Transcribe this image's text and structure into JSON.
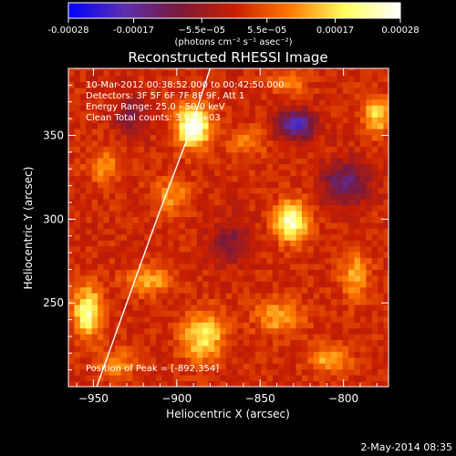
{
  "colorbar": {
    "tick_labels": [
      "-0.00028",
      "-0.00017",
      "−5.5e−05",
      "5.5e−05",
      "0.00017",
      "0.00028"
    ],
    "ticks": [
      -0.00028,
      -0.00017,
      -5.5e-05,
      5.5e-05,
      0.00017,
      0.00028
    ],
    "range": [
      -0.00028,
      0.00028
    ],
    "unit_label": "(photons cm⁻² s⁻¹ asec⁻²)",
    "colors": [
      "#0000ff",
      "#5a2fb0",
      "#7a1a3a",
      "#c81e00",
      "#ff7800",
      "#ffff60",
      "#ffffff"
    ]
  },
  "chart_data": {
    "type": "heatmap",
    "title": "Reconstructed RHESSI Image",
    "xlabel": "Heliocentric X (arcsec)",
    "ylabel": "Heliocentric Y (arcsec)",
    "xlim": [
      -965,
      -773
    ],
    "ylim": [
      200,
      390
    ],
    "x_tick_labels": [
      "−950",
      "−900",
      "−850",
      "−800"
    ],
    "x_ticks": [
      -950,
      -900,
      -850,
      -800
    ],
    "y_tick_labels": [
      "250",
      "300",
      "350"
    ],
    "y_ticks": [
      250,
      300,
      350
    ],
    "annotations": [
      "10-Mar-2012 00:38:52.000 to 00:42:50.000",
      "Detectors: 3F 5F 6F 7F 8F 9F, Att 1",
      "Energy Range: 25.0 - 50.0 keV",
      "Clean   Total counts: 3.92E+03"
    ],
    "peak_label": "Position of Peak = [-892,354]",
    "peak": {
      "x": -892,
      "y": 354
    },
    "sources": [
      {
        "x": -892,
        "y": 354,
        "value": 0.00028,
        "sx": 7,
        "sy": 9
      },
      {
        "x": -833,
        "y": 297,
        "value": 0.00025,
        "sx": 7,
        "sy": 8
      },
      {
        "x": -955,
        "y": 243,
        "value": 0.00022,
        "sx": 6,
        "sy": 10
      },
      {
        "x": -886,
        "y": 228,
        "value": 0.00018,
        "sx": 9,
        "sy": 10
      },
      {
        "x": -918,
        "y": 262,
        "value": 0.00012,
        "sx": 10,
        "sy": 6
      },
      {
        "x": -782,
        "y": 360,
        "value": 0.00015,
        "sx": 6,
        "sy": 8
      },
      {
        "x": -795,
        "y": 265,
        "value": 0.00012,
        "sx": 6,
        "sy": 10
      },
      {
        "x": -840,
        "y": 240,
        "value": 0.00012,
        "sx": 10,
        "sy": 7
      },
      {
        "x": -945,
        "y": 330,
        "value": 0.0001,
        "sx": 7,
        "sy": 7
      },
      {
        "x": -905,
        "y": 312,
        "value": 0.0001,
        "sx": 8,
        "sy": 7
      },
      {
        "x": -860,
        "y": 345,
        "value": 8e-05,
        "sx": 8,
        "sy": 6
      },
      {
        "x": -810,
        "y": 215,
        "value": 0.00012,
        "sx": 9,
        "sy": 6
      },
      {
        "x": -938,
        "y": 212,
        "value": 0.0001,
        "sx": 8,
        "sy": 6
      },
      {
        "x": -835,
        "y": 380,
        "value": 0.0001,
        "sx": 7,
        "sy": 5
      }
    ],
    "negative_regions": [
      {
        "x": -830,
        "y": 355,
        "value": -0.00022,
        "sx": 8,
        "sy": 6
      },
      {
        "x": -800,
        "y": 320,
        "value": -0.00015,
        "sx": 10,
        "sy": 9
      },
      {
        "x": -870,
        "y": 285,
        "value": -9e-05,
        "sx": 9,
        "sy": 9
      },
      {
        "x": -930,
        "y": 360,
        "value": -0.0001,
        "sx": 7,
        "sy": 8
      }
    ],
    "limb_curve": [
      [
        -948,
        200
      ],
      [
        -930,
        250
      ],
      [
        -912,
        300
      ],
      [
        -893,
        350
      ],
      [
        -880,
        390
      ]
    ]
  },
  "footer": {
    "date": "2-May-2014 08:35"
  }
}
